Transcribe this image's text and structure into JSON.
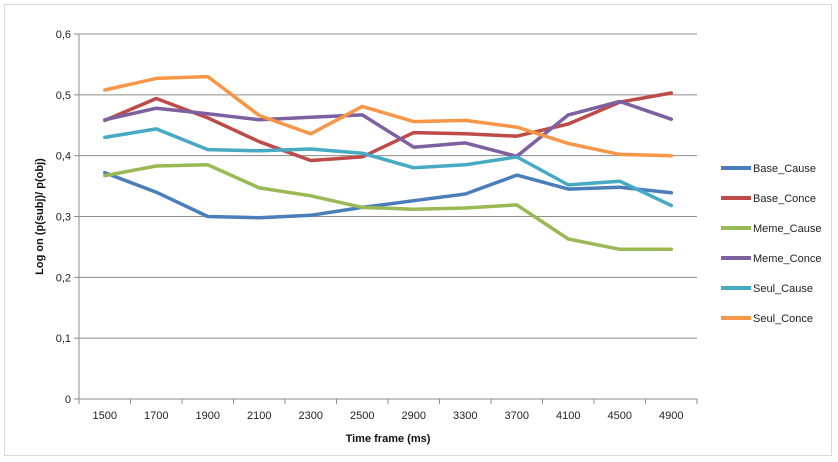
{
  "chart_data": {
    "type": "line",
    "title": "",
    "xlabel": "Time frame (ms)",
    "ylabel": "Log on (p(subj)/ p(obj)",
    "categories": [
      "1500",
      "1700",
      "1900",
      "2100",
      "2300",
      "2500",
      "2900",
      "3300",
      "3700",
      "4100",
      "4500",
      "4900"
    ],
    "ylim": [
      0,
      0.6
    ],
    "yticks": [
      "0",
      "0,1",
      "0,2",
      "0,3",
      "0,4",
      "0,5",
      "0,6"
    ],
    "grid": true,
    "legend_position": "right",
    "series": [
      {
        "name": "Base_Cause",
        "color": "#4a7ebb",
        "values": [
          0.372,
          0.34,
          0.3,
          0.298,
          0.302,
          0.315,
          0.326,
          0.337,
          0.368,
          0.345,
          0.348,
          0.339
        ]
      },
      {
        "name": "Base_Conce",
        "color": "#be4b48",
        "values": [
          0.458,
          0.494,
          0.462,
          0.423,
          0.392,
          0.398,
          0.438,
          0.436,
          0.432,
          0.452,
          0.488,
          0.503
        ]
      },
      {
        "name": "Meme_Cause",
        "color": "#98b954",
        "values": [
          0.367,
          0.383,
          0.385,
          0.347,
          0.334,
          0.315,
          0.312,
          0.314,
          0.319,
          0.263,
          0.246,
          0.246
        ]
      },
      {
        "name": "Meme_Conce",
        "color": "#7d60a0",
        "values": [
          0.459,
          0.478,
          0.469,
          0.459,
          0.463,
          0.467,
          0.414,
          0.421,
          0.399,
          0.467,
          0.489,
          0.46
        ]
      },
      {
        "name": "Seul_Cause",
        "color": "#46aac5",
        "values": [
          0.43,
          0.444,
          0.41,
          0.408,
          0.411,
          0.404,
          0.38,
          0.385,
          0.398,
          0.352,
          0.358,
          0.318
        ]
      },
      {
        "name": "Seul_Conce",
        "color": "#f79646",
        "values": [
          0.508,
          0.527,
          0.53,
          0.466,
          0.436,
          0.481,
          0.456,
          0.458,
          0.447,
          0.42,
          0.402,
          0.4
        ]
      }
    ]
  }
}
